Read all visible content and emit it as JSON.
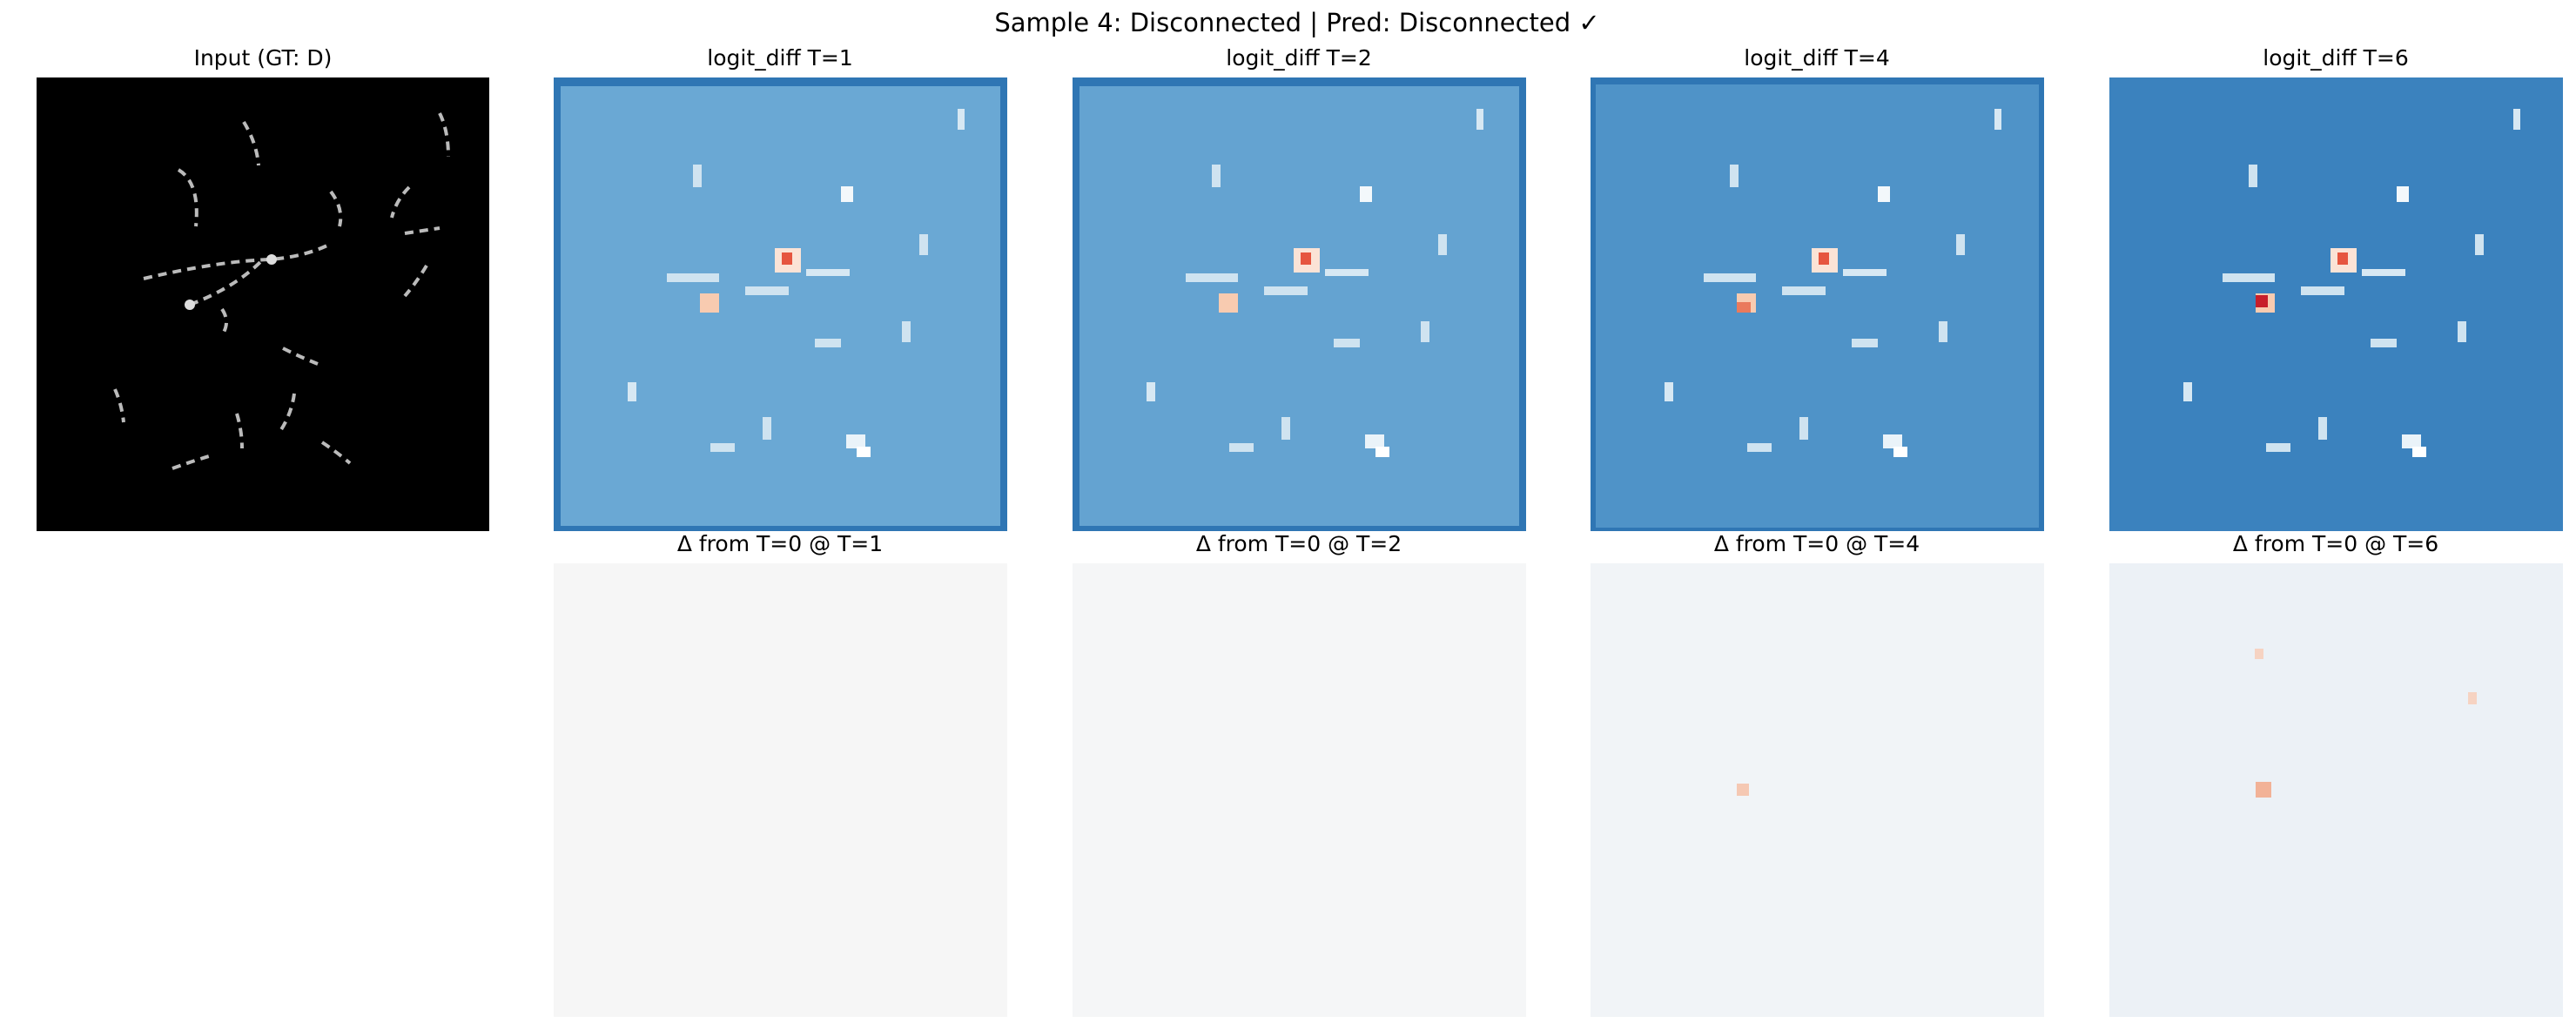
{
  "figure": {
    "title": "Sample 4: Disconnected | Pred: Disconnected ✓",
    "input_title": "Input (GT: D)",
    "top_titles": [
      "logit_diff T=1",
      "logit_diff T=2",
      "logit_diff T=4",
      "logit_diff T=6"
    ],
    "bottom_titles": [
      "Δ from T=0 @ T=1",
      "Δ from T=0 @ T=2",
      "Δ from T=0 @ T=4",
      "Δ from T=0 @ T=6"
    ]
  }
}
